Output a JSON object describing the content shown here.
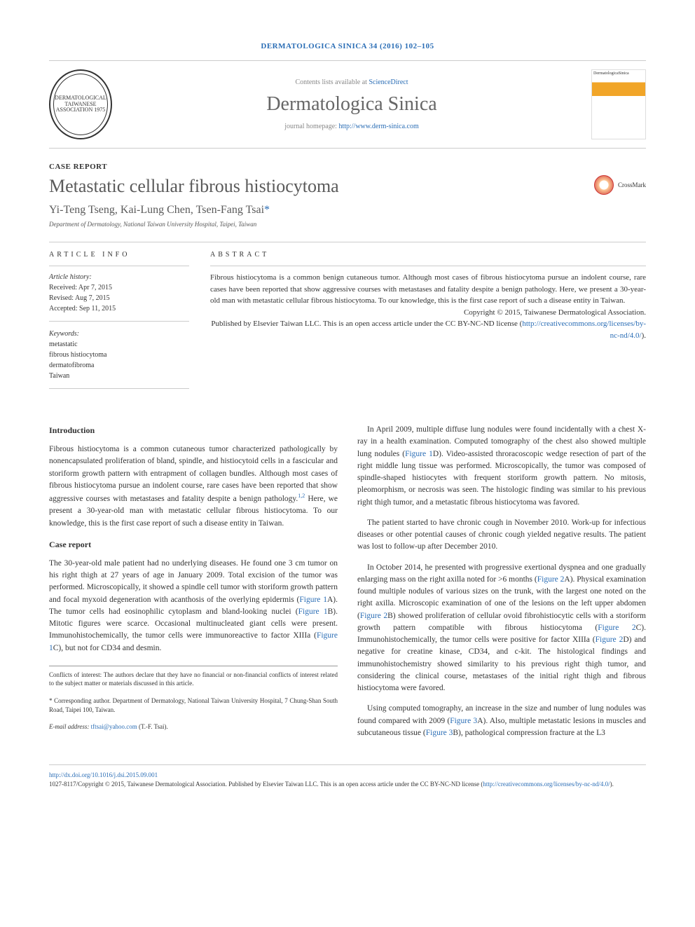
{
  "header": {
    "citation": "DERMATOLOGICA SINICA 34 (2016) 102–105",
    "contents_prefix": "Contents lists available at ",
    "contents_link": "ScienceDirect",
    "journal_name": "Dermatologica Sinica",
    "homepage_prefix": "journal homepage: ",
    "homepage_url": "http://www.derm-sinica.com",
    "logo_text": "DERMATOLOGICAL TAIWANESE ASSOCIATION 1975",
    "cover_title": "DermatologicaSinica"
  },
  "article": {
    "type": "CASE REPORT",
    "title": "Metastatic cellular fibrous histiocytoma",
    "authors": "Yi-Teng Tseng, Kai-Lung Chen, Tsen-Fang Tsai",
    "corr_mark": "*",
    "affiliation": "Department of Dermatology, National Taiwan University Hospital, Taipei, Taiwan",
    "crossmark": "CrossMark"
  },
  "info": {
    "heading": "ARTICLE INFO",
    "history_label": "Article history:",
    "received": "Received: Apr 7, 2015",
    "revised": "Revised: Aug 7, 2015",
    "accepted": "Accepted: Sep 11, 2015",
    "keywords_label": "Keywords:",
    "kw1": "metastatic",
    "kw2": "fibrous histiocytoma",
    "kw3": "dermatofibroma",
    "kw4": "Taiwan"
  },
  "abstract": {
    "heading": "ABSTRACT",
    "text": "Fibrous histiocytoma is a common benign cutaneous tumor. Although most cases of fibrous histiocytoma pursue an indolent course, rare cases have been reported that show aggressive courses with metastases and fatality despite a benign pathology. Here, we present a 30-year-old man with metastatic cellular fibrous histiocytoma. To our knowledge, this is the first case report of such a disease entity in Taiwan.",
    "copyright": "Copyright © 2015, Taiwanese Dermatological Association.",
    "published": "Published by Elsevier Taiwan LLC. This is an open access article under the CC BY-NC-ND license (",
    "license_url": "http://creativecommons.org/licenses/by-nc-nd/4.0/",
    "close": ")."
  },
  "body": {
    "intro_heading": "Introduction",
    "intro_p1a": "Fibrous histiocytoma is a common cutaneous tumor characterized pathologically by nonencapsulated proliferation of bland, spindle, and histiocytoid cells in a fascicular and storiform growth pattern with entrapment of collagen bundles. Although most cases of fibrous histiocytoma pursue an indolent course, rare cases have been reported that show aggressive courses with metastases and fatality despite a benign pathology.",
    "intro_sup": "1,2",
    "intro_p1b": " Here, we present a 30-year-old man with metastatic cellular fibrous histiocytoma. To our knowledge, this is the first case report of such a disease entity in Taiwan.",
    "case_heading": "Case report",
    "case_p1a": "The 30-year-old male patient had no underlying diseases. He found one 3 cm tumor on his right thigh at 27 years of age in January 2009. Total excision of the tumor was performed. Microscopically, it showed a spindle cell tumor with storiform growth pattern and focal myxoid degeneration with acanthosis of the overlying epidermis (",
    "fig1a": "Figure 1",
    "case_p1b": "A). The tumor cells had eosinophilic cytoplasm and bland-looking nuclei (",
    "fig1b": "Figure 1",
    "case_p1c": "B). Mitotic figures were scarce. Occasional multinucleated giant cells were present. Immunohistochemically, the tumor cells were immunoreactive to factor XIIIa (",
    "fig1c": "Figure 1",
    "case_p1d": "C), but not for CD34 and desmin.",
    "case_p2a": "In April 2009, multiple diffuse lung nodules were found incidentally with a chest X-ray in a health examination. Computed tomography of the chest also showed multiple lung nodules (",
    "fig1d": "Figure 1",
    "case_p2b": "D). Video-assisted throracoscopic wedge resection of part of the right middle lung tissue was performed. Microscopically, the tumor was composed of spindle-shaped histiocytes with frequent storiform growth pattern. No mitosis, pleomorphism, or necrosis was seen. The histologic finding was similar to his previous right thigh tumor, and a metastatic fibrous histiocytoma was favored.",
    "case_p3": "The patient started to have chronic cough in November 2010. Work-up for infectious diseases or other potential causes of chronic cough yielded negative results. The patient was lost to follow-up after December 2010.",
    "case_p4a": "In October 2014, he presented with progressive exertional dyspnea and one gradually enlarging mass on the right axilla noted for >6 months (",
    "fig2a": "Figure 2",
    "case_p4b": "A). Physical examination found multiple nodules of various sizes on the trunk, with the largest one noted on the right axilla. Microscopic examination of one of the lesions on the left upper abdomen (",
    "fig2b": "Figure 2",
    "case_p4c": "B) showed proliferation of cellular ovoid fibrohistiocytic cells with a storiform growth pattern compatible with fibrous histiocytoma (",
    "fig2c": "Figure 2",
    "case_p4d": "C). Immunohistochemically, the tumor cells were positive for factor XIIIa (",
    "fig2d": "Figure 2",
    "case_p4e": "D) and negative for creatine kinase, CD34, and c-kit. The histological findings and immunohistochemistry showed similarity to his previous right thigh tumor, and considering the clinical course, metastases of the initial right thigh and fibrous histiocytoma were favored.",
    "case_p5a": "Using computed tomography, an increase in the size and number of lung nodules was found compared with 2009 (",
    "fig3a": "Figure 3",
    "case_p5b": "A). Also, multiple metastatic lesions in muscles and subcutaneous tissue (",
    "fig3b": "Figure 3",
    "case_p5c": "B), pathological compression fracture at the L3"
  },
  "footnotes": {
    "conflicts": "Conflicts of interest: The authors declare that they have no financial or non-financial conflicts of interest related to the subject matter or materials discussed in this article.",
    "corr": "* Corresponding author. Department of Dermatology, National Taiwan University Hospital, 7 Chung-Shan South Road, Taipei 100, Taiwan.",
    "email_label": "E-mail address: ",
    "email": "tftsai@yahoo.com",
    "email_suffix": " (T.-F. Tsai)."
  },
  "footer": {
    "doi": "http://dx.doi.org/10.1016/j.dsi.2015.09.001",
    "issn_line": "1027-8117/Copyright © 2015, Taiwanese Dermatological Association. Published by Elsevier Taiwan LLC. This is an open access article under the CC BY-NC-ND license (",
    "license_url": "http://creativecommons.org/licenses/by-nc-nd/4.0/",
    "close": ")."
  },
  "colors": {
    "link": "#2a6db5",
    "text": "#333333",
    "muted": "#888888",
    "border": "#cccccc"
  }
}
